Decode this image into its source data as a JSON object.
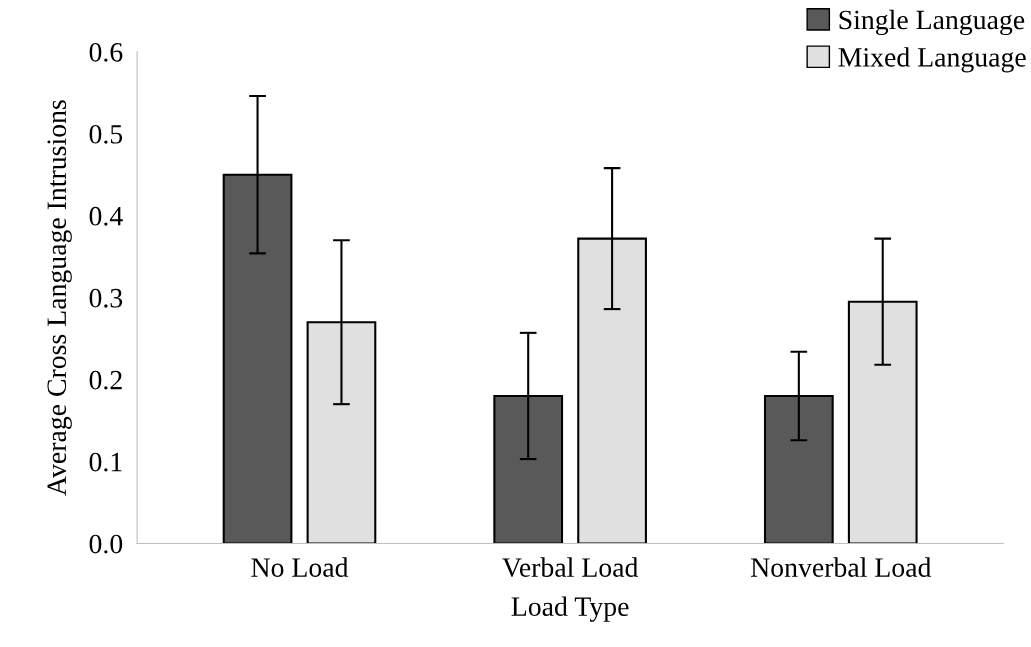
{
  "chart_data": {
    "type": "bar",
    "xlabel": "Load Type",
    "ylabel": "Average Cross Language Intrusions",
    "categories": [
      "No Load",
      "Verbal Load",
      "Nonverbal Load"
    ],
    "series": [
      {
        "name": "Single Language",
        "color": "#595959",
        "values": [
          0.45,
          0.18,
          0.18
        ],
        "errors": [
          0.096,
          0.077,
          0.054
        ]
      },
      {
        "name": "Mixed Language",
        "color": "#e0e0e0",
        "values": [
          0.27,
          0.372,
          0.295
        ],
        "errors": [
          0.1,
          0.086,
          0.077
        ]
      }
    ],
    "ylim": [
      0,
      0.6
    ],
    "yticks": [
      {
        "value": 0,
        "label": "0.0"
      },
      0.1,
      0.2,
      0.3,
      0.4,
      0.5,
      0.6
    ],
    "grid": false,
    "legend": "top right"
  }
}
